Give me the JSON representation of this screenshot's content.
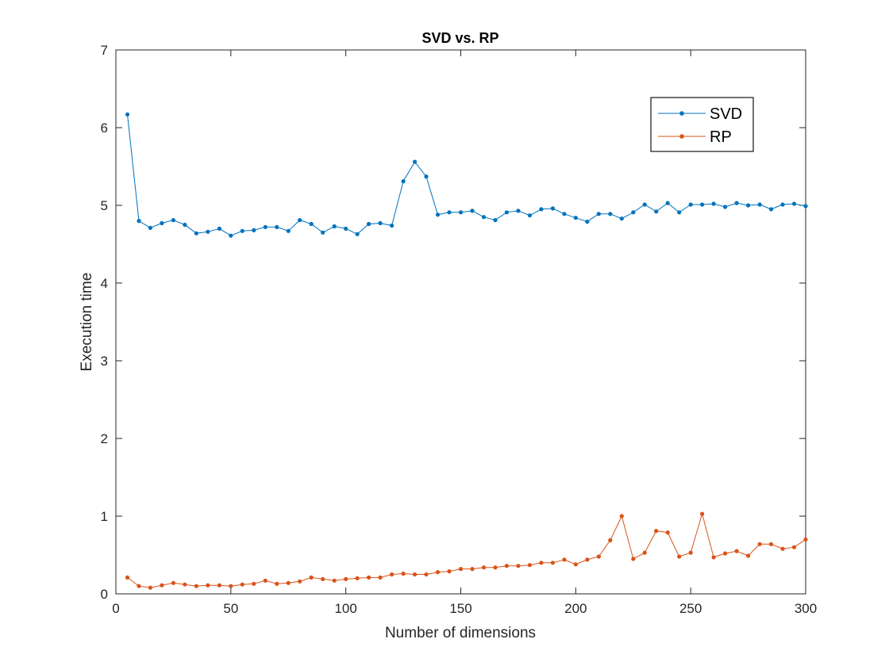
{
  "chart_data": {
    "type": "line",
    "title": "SVD vs. RP",
    "xlabel": "Number of dimensions",
    "ylabel": "Execution time",
    "xlim": [
      0,
      300
    ],
    "ylim": [
      0,
      7
    ],
    "xticks": [
      0,
      50,
      100,
      150,
      200,
      250,
      300
    ],
    "yticks": [
      0,
      1,
      2,
      3,
      4,
      5,
      6,
      7
    ],
    "grid": false,
    "legend_position": "top-right",
    "x": [
      5,
      10,
      15,
      20,
      25,
      30,
      35,
      40,
      45,
      50,
      55,
      60,
      65,
      70,
      75,
      80,
      85,
      90,
      95,
      100,
      105,
      110,
      115,
      120,
      125,
      130,
      135,
      140,
      145,
      150,
      155,
      160,
      165,
      170,
      175,
      180,
      185,
      190,
      195,
      200,
      205,
      210,
      215,
      220,
      225,
      230,
      235,
      240,
      245,
      250,
      255,
      260,
      265,
      270,
      275,
      280,
      285,
      290,
      295,
      300
    ],
    "series": [
      {
        "name": "SVD",
        "color": "#0072BD",
        "values": [
          6.17,
          4.8,
          4.71,
          4.77,
          4.81,
          4.75,
          4.64,
          4.66,
          4.7,
          4.61,
          4.67,
          4.68,
          4.72,
          4.72,
          4.67,
          4.81,
          4.76,
          4.65,
          4.73,
          4.7,
          4.63,
          4.76,
          4.77,
          4.74,
          5.31,
          5.56,
          5.37,
          4.88,
          4.91,
          4.91,
          4.93,
          4.85,
          4.81,
          4.91,
          4.93,
          4.87,
          4.95,
          4.96,
          4.89,
          4.84,
          4.79,
          4.89,
          4.89,
          4.83,
          4.91,
          5.01,
          4.92,
          5.03,
          4.91,
          5.01,
          5.01,
          5.02,
          4.98,
          5.03,
          5.0,
          5.01,
          4.95,
          5.01,
          5.02,
          4.99
        ]
      },
      {
        "name": "RP",
        "color": "#D95319",
        "values": [
          0.21,
          0.1,
          0.08,
          0.11,
          0.14,
          0.12,
          0.1,
          0.11,
          0.11,
          0.1,
          0.12,
          0.13,
          0.17,
          0.13,
          0.14,
          0.16,
          0.21,
          0.19,
          0.17,
          0.19,
          0.2,
          0.21,
          0.21,
          0.25,
          0.26,
          0.25,
          0.25,
          0.28,
          0.29,
          0.32,
          0.32,
          0.34,
          0.34,
          0.36,
          0.36,
          0.37,
          0.4,
          0.4,
          0.44,
          0.38,
          0.44,
          0.48,
          0.69,
          1.0,
          0.45,
          0.53,
          0.81,
          0.79,
          0.48,
          0.53,
          1.03,
          0.47,
          0.52,
          0.55,
          0.49,
          0.64,
          0.64,
          0.58,
          0.6,
          0.7
        ]
      }
    ]
  }
}
